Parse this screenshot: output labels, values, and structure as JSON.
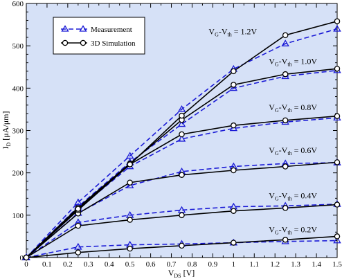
{
  "chart_data": {
    "type": "line",
    "xlabel": "V",
    "xlabel_sub": "DS",
    "xlabel_tail": " [V]",
    "ylabel": "I",
    "ylabel_sub": "D",
    "ylabel_tail": " [μA/μm]",
    "xlim": [
      0,
      1.5
    ],
    "ylim": [
      0,
      600
    ],
    "xticks": [
      "0",
      "0.1",
      "0.2",
      "0.3",
      "0.4",
      "0.5",
      "0.6",
      "0.7",
      "0.8",
      "0.9",
      "1",
      "1.1",
      "1.2",
      "1.3",
      "1.4",
      "1.5"
    ],
    "yticks": [
      "0",
      "100",
      "200",
      "300",
      "400",
      "500",
      "600"
    ],
    "grid": false,
    "background": "#d6e1f7",
    "legend_position": "top-left",
    "legend": [
      {
        "label": "Measurement",
        "color": "#1a1ad6",
        "dash": true,
        "marker": "triangle"
      },
      {
        "label": "3D Simulation",
        "color": "#000000",
        "dash": false,
        "marker": "circle"
      }
    ],
    "x": [
      0,
      0.25,
      0.5,
      0.75,
      1.0,
      1.25,
      1.5
    ],
    "curve_labels": [
      {
        "main": "V",
        "sub1": "G",
        "mid": "-V",
        "sub2": "th",
        "tail": " = 1.2V",
        "anchor_x": 0.88,
        "anchor_y": 527
      },
      {
        "main": "V",
        "sub1": "G",
        "mid": "-V",
        "sub2": "th",
        "tail": " = 1.0V",
        "anchor_x": 1.17,
        "anchor_y": 457
      },
      {
        "main": "V",
        "sub1": "G",
        "mid": "-V",
        "sub2": "th",
        "tail": " = 0.8V",
        "anchor_x": 1.17,
        "anchor_y": 348
      },
      {
        "main": "V",
        "sub1": "G",
        "mid": "-V",
        "sub2": "th",
        "tail": " = 0.6V",
        "anchor_x": 1.17,
        "anchor_y": 247
      },
      {
        "main": "V",
        "sub1": "G",
        "mid": "-V",
        "sub2": "th",
        "tail": " = 0.4V",
        "anchor_x": 1.17,
        "anchor_y": 140
      },
      {
        "main": "V",
        "sub1": "G",
        "mid": "-V",
        "sub2": "th",
        "tail": " = 0.2V",
        "anchor_x": 1.17,
        "anchor_y": 60
      }
    ],
    "series": [
      {
        "vg": "0.2V",
        "measurement": [
          0,
          25,
          30,
          32,
          35,
          38,
          40
        ],
        "simulation": [
          0,
          12,
          21,
          28,
          35,
          42,
          50
        ]
      },
      {
        "vg": "0.4V",
        "measurement": [
          0,
          83,
          100,
          112,
          120,
          122,
          126
        ],
        "simulation": [
          0,
          75,
          89,
          100,
          110,
          117,
          125
        ]
      },
      {
        "vg": "0.6V",
        "measurement": [
          0,
          105,
          170,
          203,
          215,
          222,
          224
        ],
        "simulation": [
          0,
          104,
          177,
          195,
          206,
          215,
          225
        ]
      },
      {
        "vg": "0.8V",
        "measurement": [
          0,
          115,
          215,
          280,
          305,
          320,
          330
        ],
        "simulation": [
          0,
          112,
          220,
          291,
          312,
          324,
          334
        ]
      },
      {
        "vg": "1.0V",
        "measurement": [
          0,
          120,
          225,
          315,
          400,
          428,
          442
        ],
        "simulation": [
          0,
          118,
          222,
          325,
          408,
          433,
          446
        ]
      },
      {
        "vg": "1.2V",
        "measurement": [
          0,
          130,
          240,
          350,
          445,
          505,
          540
        ],
        "simulation": [
          0,
          115,
          220,
          335,
          440,
          525,
          558
        ]
      }
    ]
  }
}
